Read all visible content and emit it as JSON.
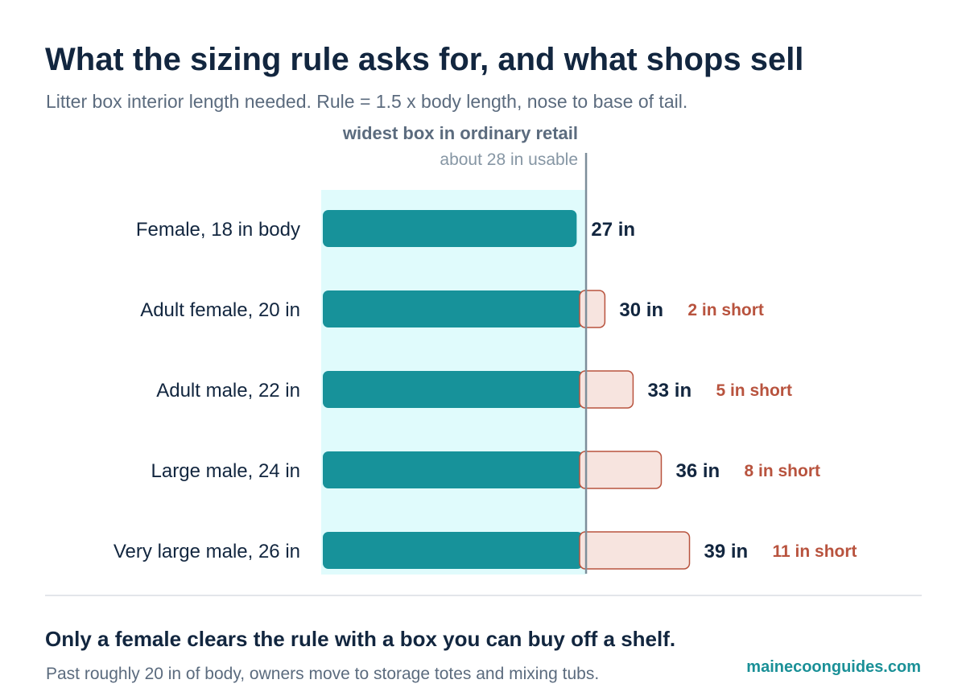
{
  "header": {
    "title": "What the sizing rule asks for, and what shops sell",
    "subtitle": "Litter box interior length needed. Rule = 1.5 x body length, nose to base of tail."
  },
  "chart_data": {
    "type": "bar",
    "orientation": "horizontal",
    "categories": [
      "Female, 18 in body",
      "Adult female, 20 in",
      "Adult male, 22 in",
      "Large male, 24 in",
      "Very large male, 26 in"
    ],
    "values": [
      27,
      30,
      33,
      36,
      39
    ],
    "value_labels": [
      "27 in",
      "30 in",
      "33 in",
      "36 in",
      "39 in"
    ],
    "shortfall": [
      0,
      2,
      5,
      8,
      11
    ],
    "shortfall_labels": [
      "",
      "2 in short",
      "5 in short",
      "8 in short",
      "11 in short"
    ],
    "reference_line": {
      "value": 28,
      "label": "widest box in ordinary retail",
      "sublabel": "about 28 in usable"
    },
    "xlim": [
      0,
      40
    ],
    "colors": {
      "bar": "#17929a",
      "shortfall_fill": "#f7e4df",
      "shortfall_stroke": "#b8533e",
      "shortfall_text": "#b8533e",
      "retail_zone": "#e0fbfc",
      "reference_line": "#7d8e9a",
      "value_text": "#12263f",
      "category_text": "#12263f"
    }
  },
  "footer": {
    "takeaway": "Only a female clears the rule with a box you can buy off a shelf.",
    "note": "Past roughly 20 in of body, owners move to storage totes and mixing tubs.",
    "brand": "mainecoonguides.com"
  }
}
